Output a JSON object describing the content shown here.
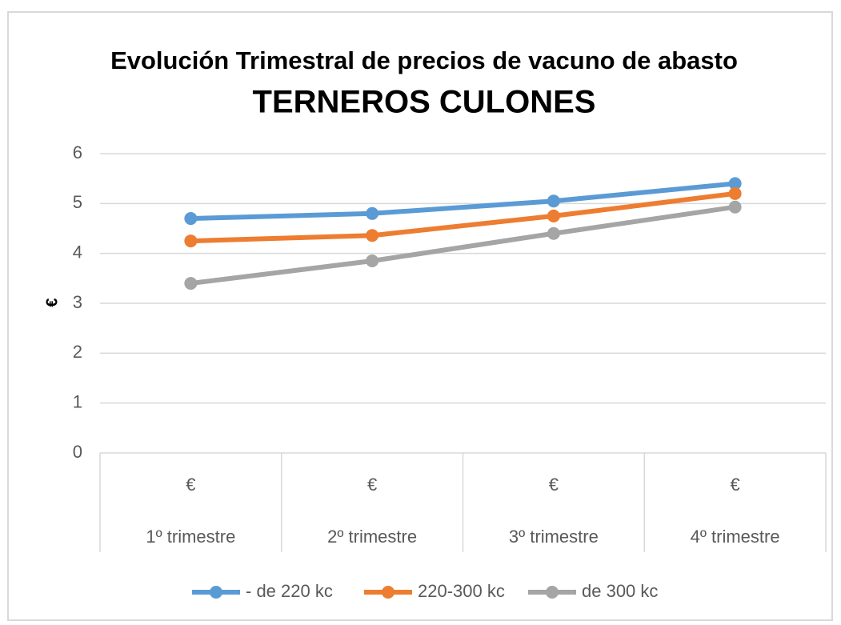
{
  "chart_data": {
    "type": "line",
    "title": "Evolución Trimestral de precios de vacuno de abasto",
    "subtitle": "TERNEROS CULONES",
    "y_label": "€",
    "category_groups": [
      "1º trimestre",
      "2º trimestre",
      "3º trimestre",
      "4º trimestre"
    ],
    "categories": [
      "€",
      "€",
      "€",
      "€"
    ],
    "series": [
      {
        "name": "- de 220 kc",
        "color": "#5b9bd5",
        "values": [
          4.7,
          4.8,
          5.05,
          5.4
        ]
      },
      {
        "name": "220-300 kc",
        "color": "#ed7d31",
        "values": [
          4.25,
          4.36,
          4.75,
          5.2
        ]
      },
      {
        "name": "de 300 kc",
        "color": "#a5a5a5",
        "values": [
          3.4,
          3.85,
          4.4,
          4.93
        ]
      }
    ],
    "ylim": [
      0,
      6
    ],
    "yticks": [
      0,
      1,
      2,
      3,
      4,
      5,
      6
    ],
    "grid": true,
    "legend": "bottom"
  }
}
